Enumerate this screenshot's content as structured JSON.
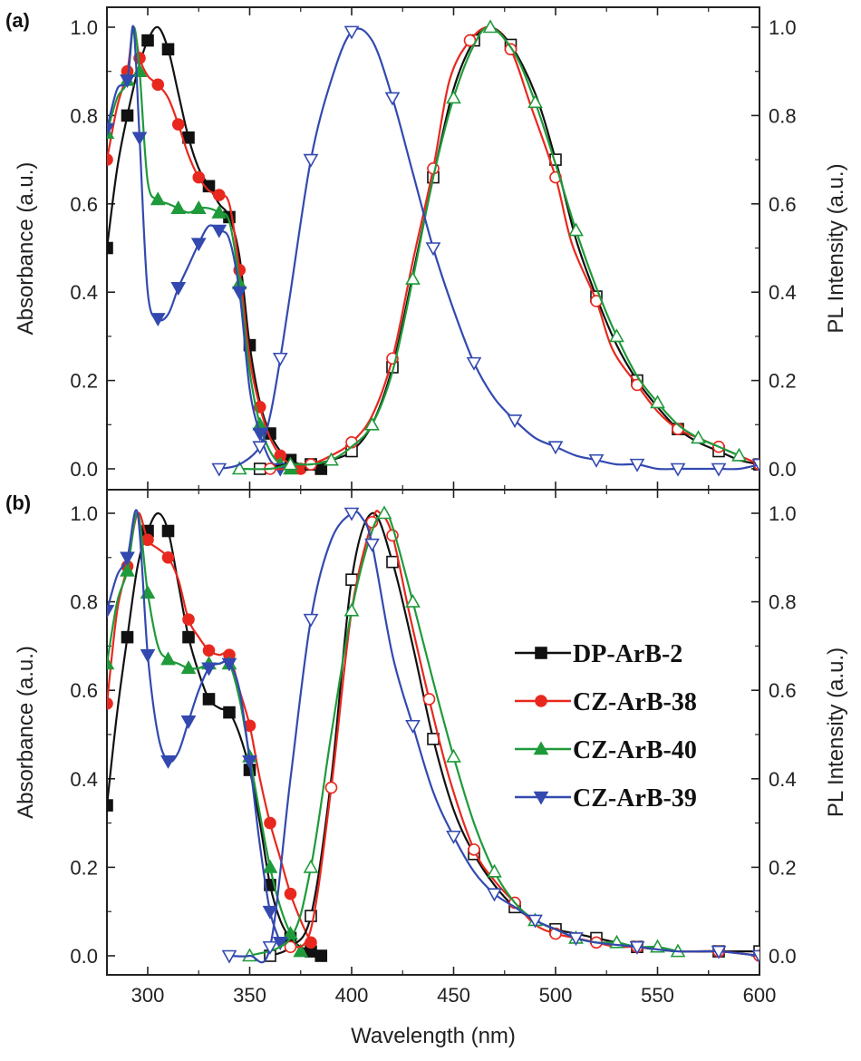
{
  "figure": {
    "xlabel": "Wavelength (nm)",
    "left_ylabel": "Absorbance (a.u.)",
    "right_ylabel": "PL Intensity (a.u.)",
    "x_ticks": [
      "300",
      "350",
      "400",
      "450",
      "500",
      "550",
      "600"
    ],
    "y_ticks": [
      "0.0",
      "0.2",
      "0.4",
      "0.6",
      "0.8",
      "1.0"
    ]
  },
  "colors": {
    "DP-ArB-2": "#111111",
    "CZ-ArB-38": "#e8281e",
    "CZ-ArB-40": "#1f9a3a",
    "CZ-ArB-39": "#3349b0"
  },
  "chart_data": [
    {
      "panel": "(a)",
      "type": "line",
      "xlim": [
        280,
        600
      ],
      "ylim": [
        0,
        1.05
      ],
      "grid": false,
      "series": [
        {
          "name": "DP-ArB-2",
          "kind": "absorbance",
          "marker": "square",
          "filled": true,
          "x": [
            280,
            285,
            290,
            295,
            300,
            305,
            310,
            315,
            320,
            325,
            330,
            335,
            340,
            345,
            350,
            355,
            360,
            365,
            370,
            375,
            380,
            385
          ],
          "y": [
            0.5,
            0.68,
            0.8,
            0.9,
            0.97,
            1.0,
            0.95,
            0.85,
            0.75,
            0.68,
            0.64,
            0.6,
            0.57,
            0.48,
            0.28,
            0.15,
            0.08,
            0.04,
            0.02,
            0.01,
            0.01,
            0.0
          ]
        },
        {
          "name": "CZ-ArB-38",
          "kind": "absorbance",
          "marker": "circle",
          "filled": true,
          "x": [
            280,
            285,
            290,
            293,
            296,
            300,
            305,
            310,
            315,
            320,
            325,
            330,
            335,
            340,
            345,
            350,
            355,
            360,
            365,
            370,
            375
          ],
          "y": [
            0.7,
            0.82,
            0.9,
            1.0,
            0.93,
            0.89,
            0.87,
            0.84,
            0.78,
            0.71,
            0.66,
            0.63,
            0.62,
            0.6,
            0.45,
            0.25,
            0.14,
            0.07,
            0.03,
            0.01,
            0.0
          ]
        },
        {
          "name": "CZ-ArB-40",
          "kind": "absorbance",
          "marker": "triangle-up",
          "filled": true,
          "x": [
            280,
            285,
            290,
            293,
            296,
            300,
            305,
            310,
            315,
            320,
            325,
            330,
            335,
            340,
            345,
            350,
            355,
            360,
            365,
            370
          ],
          "y": [
            0.76,
            0.84,
            0.88,
            1.0,
            0.9,
            0.65,
            0.61,
            0.6,
            0.59,
            0.58,
            0.59,
            0.59,
            0.58,
            0.56,
            0.42,
            0.22,
            0.1,
            0.04,
            0.01,
            0.0
          ]
        },
        {
          "name": "CZ-ArB-39",
          "kind": "absorbance",
          "marker": "triangle-down",
          "filled": true,
          "x": [
            280,
            285,
            290,
            293,
            296,
            300,
            305,
            310,
            315,
            320,
            325,
            330,
            335,
            340,
            345,
            350,
            355,
            360,
            365
          ],
          "y": [
            0.77,
            0.86,
            0.88,
            1.0,
            0.75,
            0.4,
            0.34,
            0.35,
            0.41,
            0.46,
            0.51,
            0.55,
            0.54,
            0.52,
            0.4,
            0.18,
            0.08,
            0.02,
            0.0
          ]
        },
        {
          "name": "DP-ArB-2",
          "kind": "pl",
          "marker": "square",
          "filled": false,
          "x": [
            355,
            370,
            380,
            390,
            400,
            410,
            420,
            430,
            440,
            450,
            460,
            468,
            478,
            490,
            500,
            510,
            520,
            530,
            540,
            550,
            560,
            570,
            580,
            590,
            600
          ],
          "y": [
            0.0,
            0.01,
            0.01,
            0.02,
            0.04,
            0.1,
            0.23,
            0.44,
            0.66,
            0.86,
            0.97,
            1.0,
            0.96,
            0.85,
            0.7,
            0.52,
            0.39,
            0.28,
            0.2,
            0.14,
            0.09,
            0.06,
            0.04,
            0.02,
            0.01
          ]
        },
        {
          "name": "CZ-ArB-38",
          "kind": "pl",
          "marker": "circle",
          "filled": false,
          "x": [
            360,
            370,
            380,
            390,
            400,
            410,
            420,
            430,
            440,
            448,
            458,
            468,
            478,
            488,
            500,
            508,
            520,
            528,
            540,
            550,
            560,
            570,
            580,
            590,
            600
          ],
          "y": [
            0.0,
            0.0,
            0.01,
            0.03,
            0.06,
            0.12,
            0.25,
            0.47,
            0.68,
            0.88,
            0.97,
            1.0,
            0.95,
            0.82,
            0.66,
            0.51,
            0.38,
            0.27,
            0.19,
            0.13,
            0.09,
            0.07,
            0.05,
            0.03,
            0.01
          ]
        },
        {
          "name": "CZ-ArB-40",
          "kind": "pl",
          "marker": "triangle-up",
          "filled": false,
          "x": [
            345,
            360,
            370,
            380,
            390,
            400,
            410,
            420,
            430,
            440,
            450,
            460,
            468,
            480,
            490,
            500,
            510,
            520,
            530,
            540,
            550,
            560,
            570,
            580,
            590
          ],
          "y": [
            0.0,
            0.0,
            0.01,
            0.01,
            0.02,
            0.05,
            0.1,
            0.22,
            0.43,
            0.66,
            0.84,
            0.96,
            1.0,
            0.94,
            0.83,
            0.69,
            0.54,
            0.41,
            0.3,
            0.21,
            0.15,
            0.1,
            0.07,
            0.05,
            0.03
          ]
        },
        {
          "name": "CZ-ArB-39",
          "kind": "pl",
          "marker": "triangle-down",
          "filled": false,
          "x": [
            335,
            345,
            355,
            360,
            365,
            370,
            380,
            390,
            400,
            410,
            420,
            430,
            440,
            450,
            460,
            470,
            480,
            490,
            500,
            510,
            520,
            530,
            540,
            550,
            560,
            570,
            580,
            590,
            600
          ],
          "y": [
            0.0,
            0.01,
            0.05,
            0.12,
            0.25,
            0.4,
            0.7,
            0.88,
            0.99,
            0.97,
            0.84,
            0.67,
            0.5,
            0.36,
            0.24,
            0.16,
            0.11,
            0.07,
            0.05,
            0.03,
            0.02,
            0.01,
            0.01,
            0.0,
            0.0,
            0.0,
            0.0,
            0.0,
            0.01
          ]
        }
      ]
    },
    {
      "panel": "(b)",
      "type": "line",
      "xlim": [
        280,
        600
      ],
      "ylim": [
        0,
        1.05
      ],
      "grid": false,
      "legend": {
        "position": "right",
        "entries": [
          "DP-ArB-2",
          "CZ-ArB-38",
          "CZ-ArB-40",
          "CZ-ArB-39"
        ]
      },
      "series": [
        {
          "name": "DP-ArB-2",
          "kind": "absorbance",
          "marker": "square",
          "filled": true,
          "x": [
            280,
            285,
            290,
            295,
            300,
            305,
            310,
            315,
            320,
            325,
            330,
            335,
            340,
            345,
            350,
            355,
            360,
            365,
            370,
            375,
            380,
            385
          ],
          "y": [
            0.34,
            0.55,
            0.72,
            0.88,
            0.96,
            1.0,
            0.96,
            0.84,
            0.72,
            0.64,
            0.58,
            0.56,
            0.55,
            0.5,
            0.42,
            0.3,
            0.16,
            0.08,
            0.04,
            0.02,
            0.01,
            0.0
          ]
        },
        {
          "name": "CZ-ArB-38",
          "kind": "absorbance",
          "marker": "circle",
          "filled": true,
          "x": [
            280,
            285,
            290,
            295,
            300,
            305,
            310,
            315,
            320,
            325,
            330,
            335,
            340,
            345,
            350,
            355,
            360,
            365,
            370,
            375,
            380
          ],
          "y": [
            0.57,
            0.78,
            0.88,
            1.0,
            0.94,
            0.92,
            0.9,
            0.85,
            0.76,
            0.72,
            0.69,
            0.68,
            0.68,
            0.6,
            0.52,
            0.4,
            0.3,
            0.22,
            0.14,
            0.08,
            0.03
          ]
        },
        {
          "name": "CZ-ArB-40",
          "kind": "absorbance",
          "marker": "triangle-up",
          "filled": true,
          "x": [
            280,
            285,
            290,
            295,
            300,
            305,
            310,
            315,
            320,
            325,
            330,
            335,
            340,
            345,
            350,
            355,
            360,
            365,
            370,
            375
          ],
          "y": [
            0.66,
            0.8,
            0.87,
            1.0,
            0.82,
            0.7,
            0.67,
            0.66,
            0.65,
            0.65,
            0.66,
            0.66,
            0.66,
            0.58,
            0.45,
            0.32,
            0.2,
            0.11,
            0.05,
            0.01
          ]
        },
        {
          "name": "CZ-ArB-39",
          "kind": "absorbance",
          "marker": "triangle-down",
          "filled": true,
          "x": [
            280,
            285,
            290,
            295,
            300,
            305,
            310,
            315,
            320,
            325,
            330,
            335,
            340,
            345,
            350,
            355,
            360,
            365
          ],
          "y": [
            0.78,
            0.86,
            0.9,
            1.0,
            0.68,
            0.5,
            0.44,
            0.46,
            0.53,
            0.6,
            0.65,
            0.66,
            0.66,
            0.6,
            0.44,
            0.25,
            0.1,
            0.03
          ]
        },
        {
          "name": "DP-ArB-2",
          "kind": "pl",
          "marker": "square",
          "filled": false,
          "x": [
            360,
            370,
            380,
            390,
            400,
            410,
            420,
            430,
            440,
            450,
            460,
            470,
            480,
            490,
            500,
            510,
            520,
            530,
            540,
            560,
            580,
            600
          ],
          "y": [
            0.0,
            0.02,
            0.09,
            0.4,
            0.85,
            1.0,
            0.89,
            0.7,
            0.49,
            0.33,
            0.23,
            0.16,
            0.11,
            0.08,
            0.06,
            0.05,
            0.04,
            0.03,
            0.02,
            0.01,
            0.01,
            0.01
          ]
        },
        {
          "name": "CZ-ArB-38",
          "kind": "pl",
          "marker": "circle",
          "filled": false,
          "x": [
            370,
            380,
            390,
            400,
            410,
            414,
            420,
            428,
            438,
            448,
            460,
            470,
            480,
            490,
            500,
            510,
            520,
            530,
            540,
            560,
            580,
            600
          ],
          "y": [
            0.02,
            0.06,
            0.38,
            0.78,
            0.98,
            1.0,
            0.95,
            0.78,
            0.58,
            0.4,
            0.24,
            0.17,
            0.12,
            0.07,
            0.05,
            0.04,
            0.03,
            0.02,
            0.02,
            0.01,
            0.01,
            0.0
          ]
        },
        {
          "name": "CZ-ArB-40",
          "kind": "pl",
          "marker": "triangle-up",
          "filled": false,
          "x": [
            350,
            370,
            380,
            390,
            400,
            410,
            416,
            420,
            430,
            440,
            450,
            460,
            470,
            480,
            490,
            500,
            510,
            520,
            530,
            540,
            550,
            560
          ],
          "y": [
            0.0,
            0.04,
            0.2,
            0.5,
            0.78,
            0.96,
            1.0,
            0.97,
            0.8,
            0.62,
            0.45,
            0.3,
            0.19,
            0.12,
            0.08,
            0.06,
            0.04,
            0.03,
            0.03,
            0.02,
            0.02,
            0.01
          ]
        },
        {
          "name": "CZ-ArB-39",
          "kind": "pl",
          "marker": "triangle-down",
          "filled": false,
          "x": [
            340,
            350,
            360,
            370,
            380,
            390,
            400,
            405,
            410,
            420,
            430,
            440,
            450,
            460,
            470,
            480,
            490,
            500,
            510,
            520,
            540,
            560,
            580,
            600
          ],
          "y": [
            0.0,
            0.0,
            0.02,
            0.4,
            0.76,
            0.94,
            1.0,
            0.99,
            0.93,
            0.68,
            0.52,
            0.37,
            0.27,
            0.19,
            0.14,
            0.11,
            0.08,
            0.06,
            0.04,
            0.03,
            0.02,
            0.01,
            0.01,
            0.0
          ]
        }
      ]
    }
  ]
}
